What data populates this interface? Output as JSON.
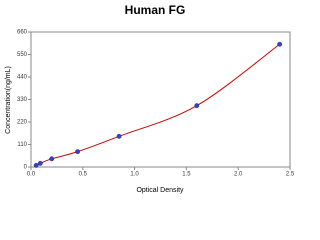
{
  "chart_data": {
    "type": "scatter",
    "title": "Human FG",
    "x_label": "Optical Density",
    "y_label": "Concentration(ng/mL)",
    "x": [
      0.05,
      0.09,
      0.2,
      0.45,
      0.85,
      1.6,
      2.4
    ],
    "series": [
      {
        "color": "#3344cc",
        "line_color": "#cc0000",
        "values": [
          8,
          18,
          40,
          75,
          150,
          300,
          600
        ]
      }
    ],
    "xlim": [
      0,
      2.5
    ],
    "xticks": [
      {
        "value": 0,
        "label": "0.0"
      },
      0.5,
      {
        "value": 1,
        "label": "1.0"
      },
      1.5,
      {
        "value": 2,
        "label": "2.0"
      },
      2.5
    ],
    "ylim": [
      0,
      660
    ],
    "yticks": [
      0,
      110,
      220,
      330,
      440,
      550,
      660
    ]
  }
}
